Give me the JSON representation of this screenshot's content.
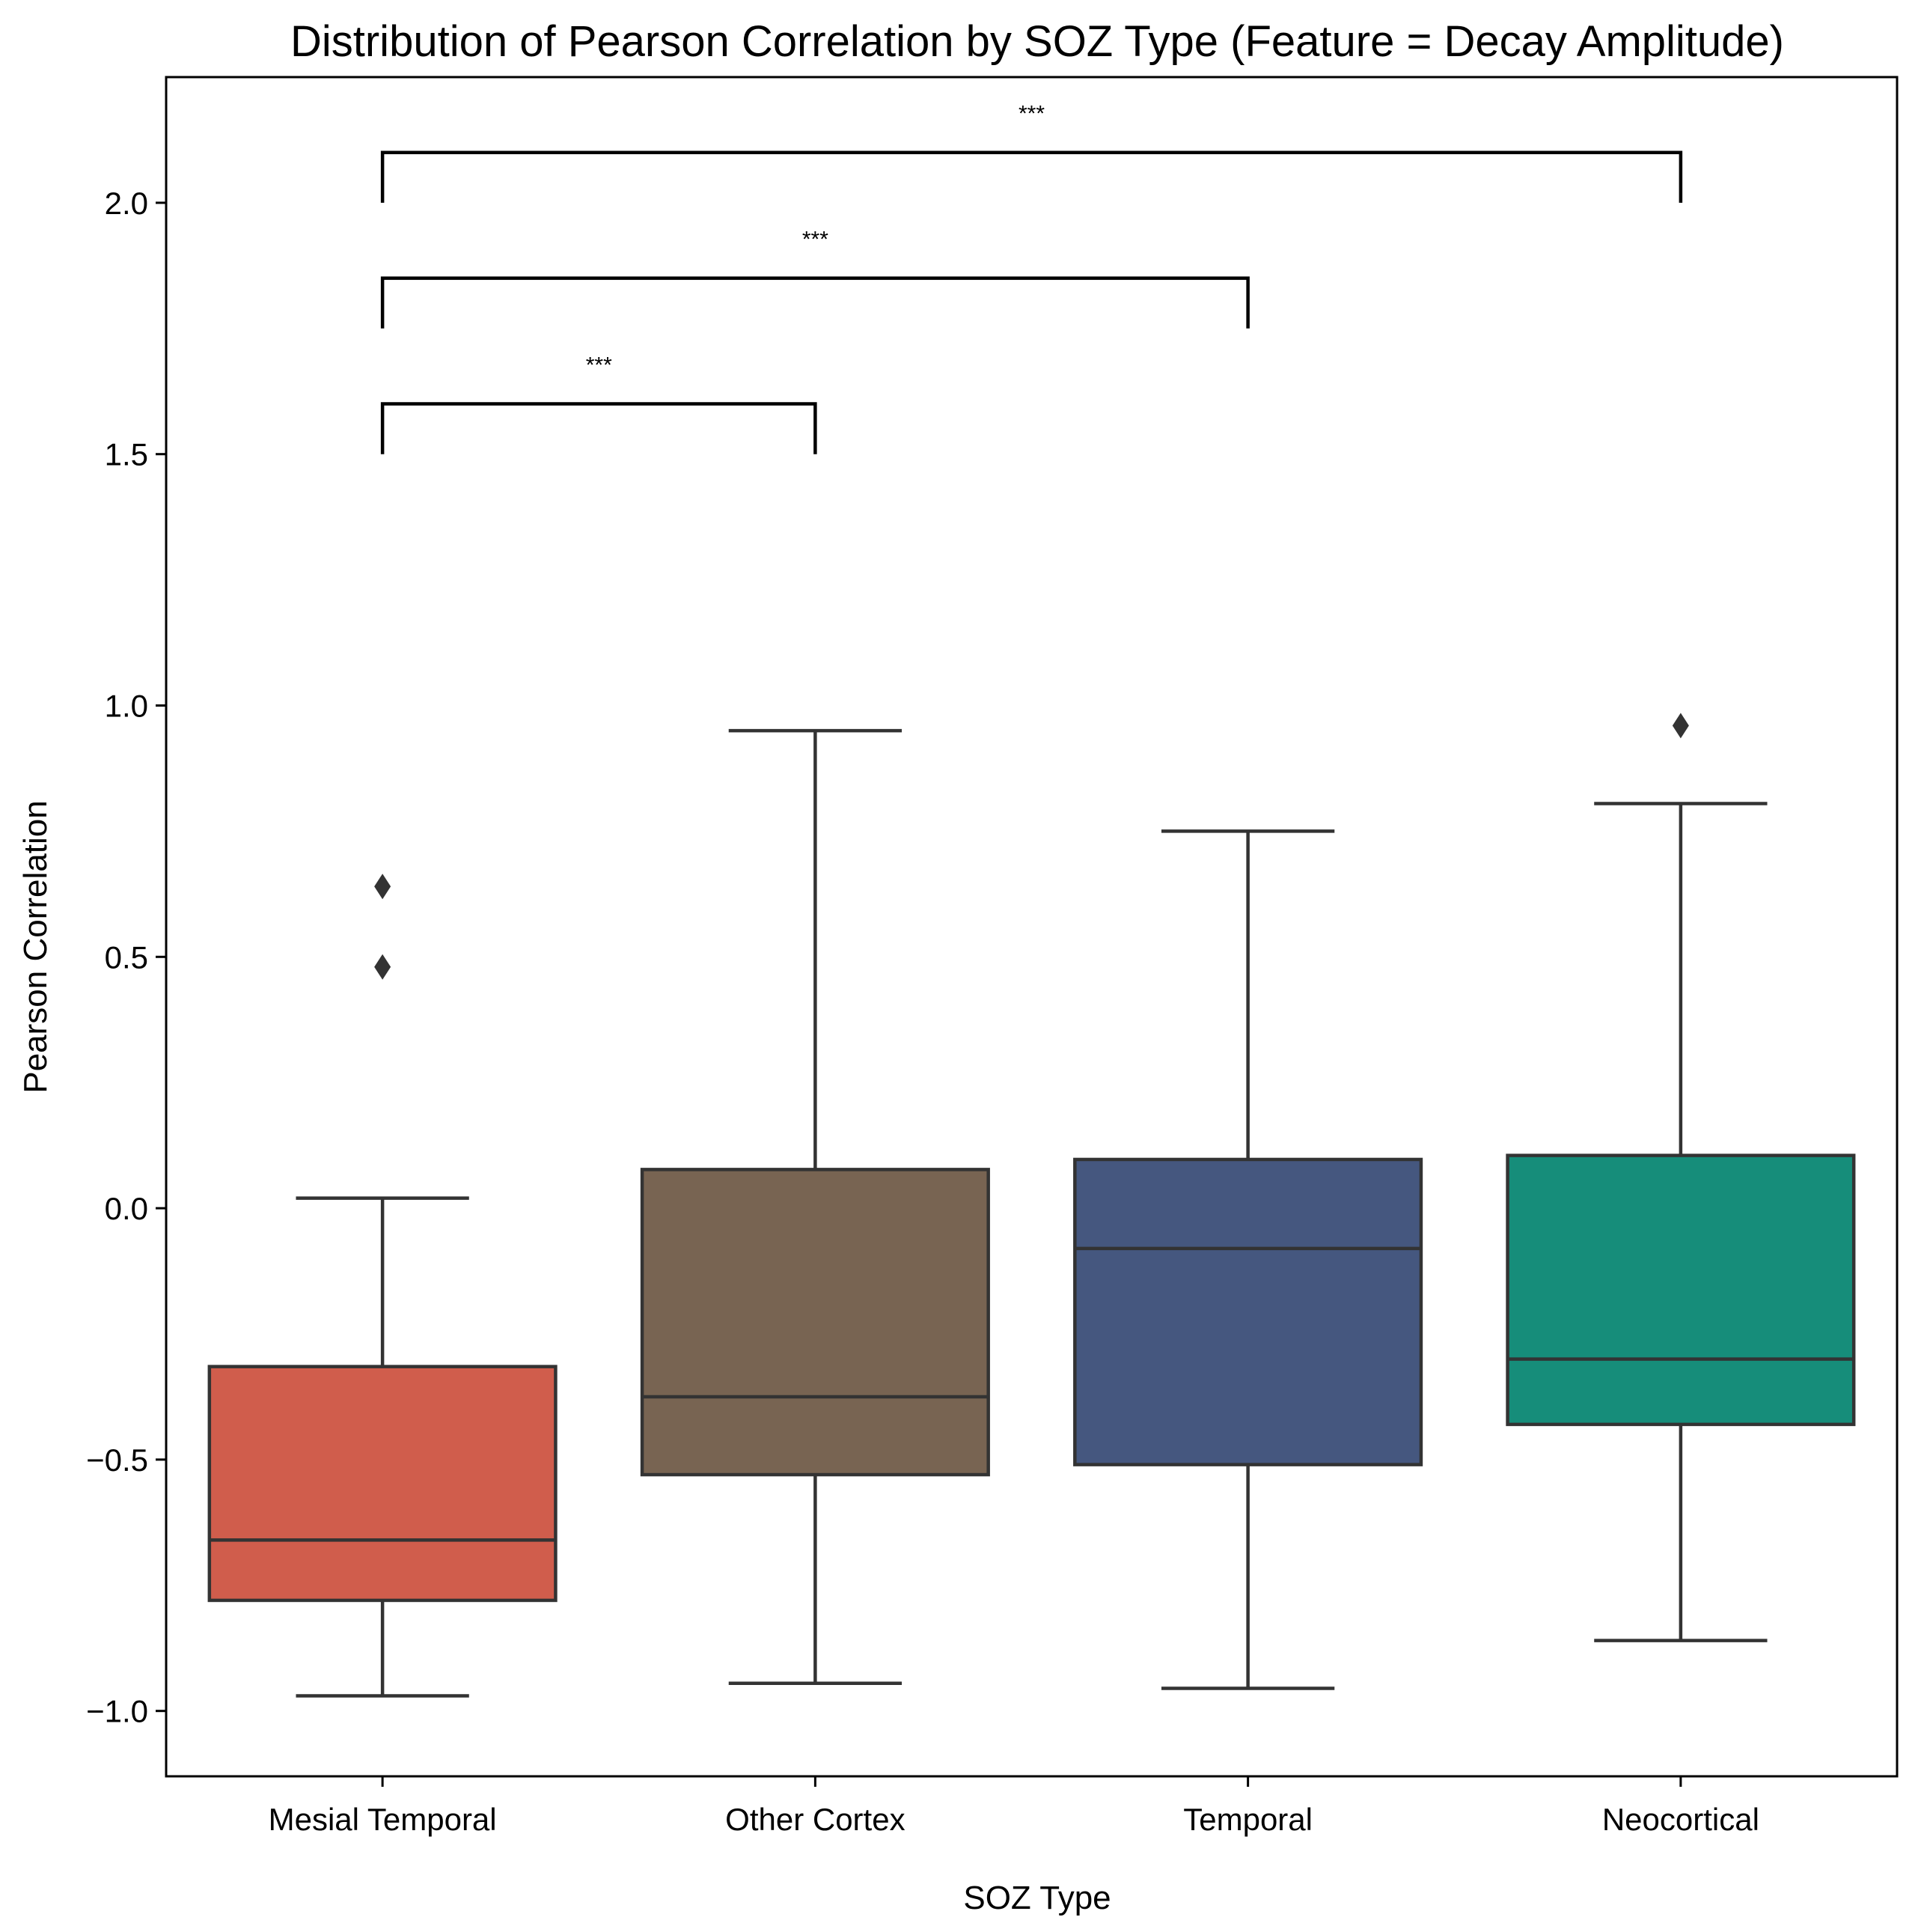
{
  "chart_data": {
    "type": "box",
    "title": "Distribution of Pearson Correlation by SOZ Type (Feature = Decay Amplitude)",
    "xlabel": "SOZ Type",
    "ylabel": "Pearson Correlation",
    "ylim": [
      -1.13,
      2.25
    ],
    "yticks": [
      -1.0,
      -0.5,
      0.0,
      0.5,
      1.0,
      1.5,
      2.0
    ],
    "ytick_labels": [
      "−1.0",
      "−0.5",
      "0.0",
      "0.5",
      "1.0",
      "1.5",
      "2.0"
    ],
    "grid": false,
    "categories": [
      "Mesial Temporal",
      "Other Cortex",
      "Temporal",
      "Neocortical"
    ],
    "boxes": [
      {
        "category": "Mesial Temporal",
        "color": "#d05d4c",
        "whisker_low": -0.97,
        "q1": -0.78,
        "median": -0.66,
        "q3": -0.315,
        "whisker_high": 0.02,
        "outliers": [
          0.64,
          0.48
        ]
      },
      {
        "category": "Other Cortex",
        "color": "#786452",
        "whisker_low": -0.945,
        "q1": -0.53,
        "median": -0.375,
        "q3": 0.077,
        "whisker_high": 0.95,
        "outliers": []
      },
      {
        "category": "Temporal",
        "color": "#45577f",
        "whisker_low": -0.955,
        "q1": -0.51,
        "median": -0.08,
        "q3": 0.097,
        "whisker_high": 0.75,
        "outliers": []
      },
      {
        "category": "Neocortical",
        "color": "#168d7a",
        "whisker_low": -0.86,
        "q1": -0.43,
        "median": -0.3,
        "q3": 0.105,
        "whisker_high": 0.805,
        "outliers": [
          0.96
        ]
      }
    ],
    "significance": [
      {
        "from": "Mesial Temporal",
        "to": "Other Cortex",
        "label": "***",
        "y_base": 1.5,
        "y_top": 1.6
      },
      {
        "from": "Mesial Temporal",
        "to": "Temporal",
        "label": "***",
        "y_base": 1.75,
        "y_top": 1.85
      },
      {
        "from": "Mesial Temporal",
        "to": "Neocortical",
        "label": "***",
        "y_base": 2.0,
        "y_top": 2.1
      }
    ]
  }
}
